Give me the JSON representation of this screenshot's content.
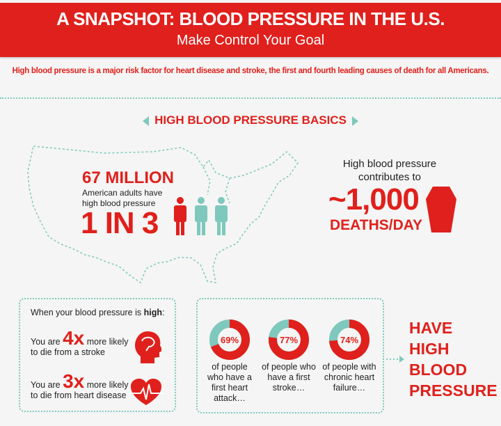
{
  "header": {
    "title": "A SNAPSHOT: BLOOD PRESSURE IN THE U.S.",
    "subtitle": "Make Control Your Goal"
  },
  "intro": "High blood pressure is a major risk factor for heart disease and stroke, the first and fourth leading causes of death for all Americans.",
  "section_title": "HIGH BLOOD PRESSURE BASICS",
  "map_stats": {
    "count": "67 MILLION",
    "count_desc_1": "American adults have",
    "count_desc_2": "high blood pressure",
    "ratio": "1 IN 3"
  },
  "deaths": {
    "lead_1": "High blood pressure",
    "lead_2": "contributes to",
    "number": "~1,000",
    "unit": "DEATHS/DAY"
  },
  "risk_box": {
    "heading_prefix": "When your blood pressure is ",
    "heading_bold": "high",
    "items": [
      {
        "prefix": "You are ",
        "multiplier": "4x",
        "suffix": " more likely",
        "line2": "to die from a stroke",
        "icon": "brain-head-icon"
      },
      {
        "prefix": "You are ",
        "multiplier": "3x",
        "suffix": " more likely",
        "line2": "to die from heart disease",
        "icon": "heart-pulse-icon"
      }
    ]
  },
  "donuts": [
    {
      "label": "69%",
      "value": 69,
      "caption": [
        "of people",
        "who have a",
        "first heart",
        "attack…"
      ]
    },
    {
      "label": "77%",
      "value": 77,
      "caption": [
        "of people who",
        "have a first",
        "stroke…"
      ]
    },
    {
      "label": "74%",
      "value": 74,
      "caption": [
        "of people with",
        "chronic heart",
        "failure…"
      ]
    }
  ],
  "conclusion": [
    "HAVE",
    "HIGH",
    "BLOOD",
    "PRESSURE"
  ],
  "colors": {
    "red": "#e0201c",
    "teal": "#7fc8bd",
    "background": "#f4f5f4"
  }
}
